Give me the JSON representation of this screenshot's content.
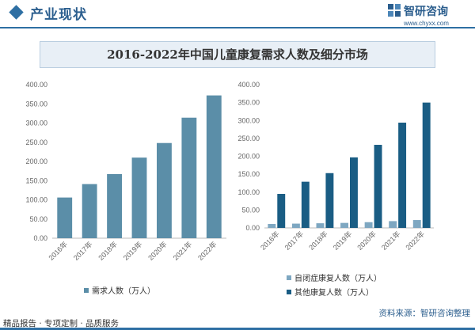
{
  "header": {
    "section_title": "产业现状",
    "logo_name": "智研咨询",
    "logo_site": "www.chyxx.com"
  },
  "banner_title": "2016-2022年中国儿童康复需求人数及细分市场",
  "footer": {
    "left_text": "精品报告 · 专项定制 · 品质服务",
    "source_text": "资料来源：智研咨询整理"
  },
  "colors": {
    "brand": "#2e6fa3",
    "demand_bar": "#5b8ea8",
    "autism_bar": "#7ea7c1",
    "other_bar": "#1a5d84"
  },
  "chart_data": [
    {
      "type": "bar",
      "title": "",
      "categories": [
        "2016年",
        "2017年",
        "2018年",
        "2019年",
        "2020年",
        "2021年",
        "2022年"
      ],
      "series": [
        {
          "name": "需求人数（万人）",
          "values": [
            106,
            141,
            167,
            210,
            248,
            314,
            372
          ]
        }
      ],
      "yticks": [
        "0.00",
        "50.00",
        "100.00",
        "150.00",
        "200.00",
        "250.00",
        "300.00",
        "350.00",
        "400.00"
      ],
      "ylim": [
        0,
        400
      ],
      "grid": false,
      "legend": "bottom-left"
    },
    {
      "type": "bar",
      "title": "",
      "categories": [
        "2016年",
        "2017年",
        "2018年",
        "2019年",
        "2020年",
        "2021年",
        "2022年"
      ],
      "series": [
        {
          "name": "自闭症康复人数（万人）",
          "values": [
            11,
            12,
            13,
            14,
            16,
            19,
            22
          ]
        },
        {
          "name": "其他康复人数（万人）",
          "values": [
            95,
            129,
            153,
            197,
            232,
            294,
            350
          ]
        }
      ],
      "yticks": [
        "0.00",
        "50.00",
        "100.00",
        "150.00",
        "200.00",
        "250.00",
        "300.00",
        "350.00",
        "400.00"
      ],
      "ylim": [
        0,
        400
      ],
      "grid": false,
      "legend": "bottom-left"
    }
  ]
}
